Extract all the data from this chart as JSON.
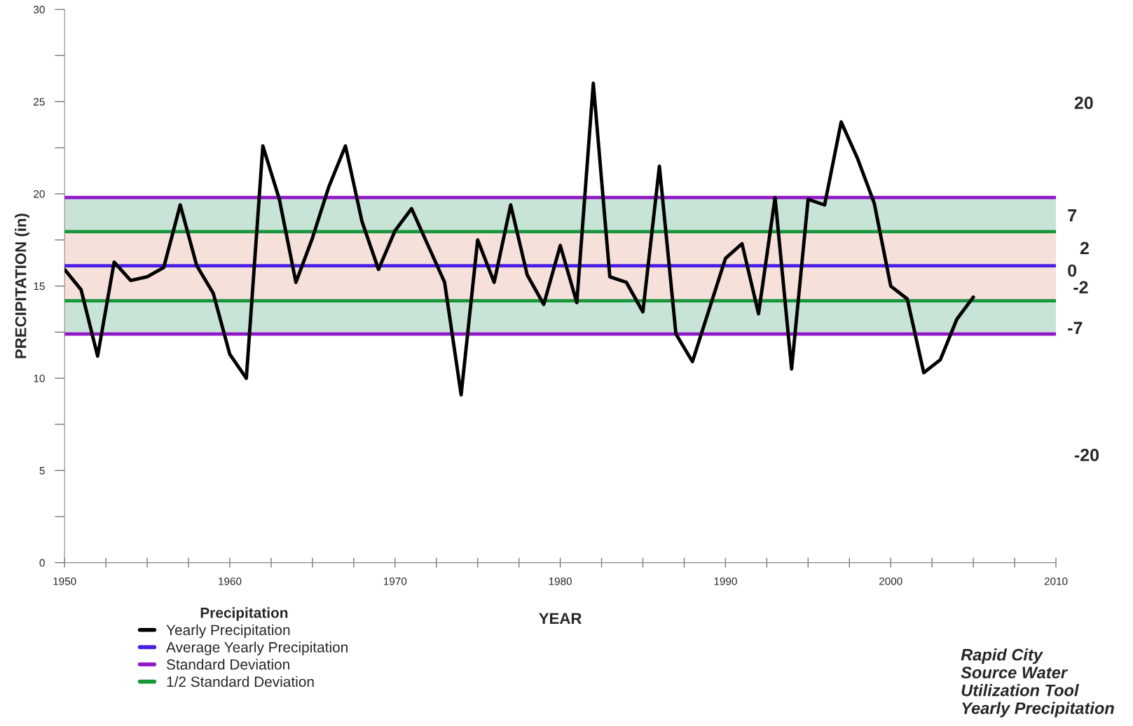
{
  "chart_data": {
    "type": "line",
    "xlabel": "YEAR",
    "ylabel": "PRECIPITATION (in)",
    "legend_title": "Precipitation",
    "legend": "bottom left",
    "x": [
      1950,
      1951,
      1952,
      1953,
      1954,
      1955,
      1956,
      1957,
      1958,
      1959,
      1960,
      1961,
      1962,
      1963,
      1964,
      1965,
      1966,
      1967,
      1968,
      1969,
      1970,
      1971,
      1972,
      1973,
      1974,
      1975,
      1976,
      1977,
      1978,
      1979,
      1980,
      1981,
      1982,
      1983,
      1984,
      1985,
      1986,
      1987,
      1988,
      1989,
      1990,
      1991,
      1992,
      1993,
      1994,
      1995,
      1996,
      1997,
      1998,
      1999,
      2000,
      2001,
      2002,
      2003,
      2004,
      2005
    ],
    "series": [
      {
        "name": "Yearly Precipitation",
        "color": "#000000",
        "values": [
          15.9,
          14.8,
          11.2,
          16.3,
          15.3,
          15.5,
          16.0,
          19.4,
          16.1,
          14.6,
          11.3,
          10.0,
          22.6,
          19.7,
          15.2,
          17.6,
          20.4,
          22.6,
          18.5,
          15.9,
          18.0,
          19.2,
          17.2,
          15.2,
          9.1,
          17.5,
          15.2,
          19.4,
          15.6,
          14.0,
          17.2,
          14.1,
          26.0,
          15.5,
          15.2,
          13.6,
          21.5,
          12.4,
          10.9,
          13.7,
          16.5,
          17.3,
          13.5,
          19.8,
          10.5,
          19.7,
          19.4,
          23.9,
          21.9,
          19.5,
          15.0,
          14.3,
          10.3,
          11.0,
          13.2,
          14.4
        ]
      }
    ],
    "ref_lines": [
      {
        "axis": "y",
        "value": 16.1,
        "label": "Average Yearly Precipitation",
        "color": "#4b1ee6"
      },
      {
        "axis": "y",
        "value": 19.8,
        "label": "Standard Deviation",
        "color": "#9016c8"
      },
      {
        "axis": "y",
        "value": 12.4,
        "label": null,
        "color": "#9016c8"
      },
      {
        "axis": "y",
        "value": 17.95,
        "label": "1/2 Standard Deviation",
        "color": "#18963c"
      },
      {
        "axis": "y",
        "value": 14.2,
        "label": null,
        "color": "#18963c"
      }
    ],
    "bands": [
      {
        "axis": "y",
        "from": 12.4,
        "to": 14.2,
        "color": "#c8e4d6"
      },
      {
        "axis": "y",
        "from": 14.2,
        "to": 17.95,
        "color": "#f6e0da"
      },
      {
        "axis": "y",
        "from": 17.95,
        "to": 19.8,
        "color": "#c8e4d6"
      }
    ],
    "annotations": [
      "20",
      "7",
      "2",
      "0",
      "-2",
      "-7",
      "-20",
      "Rapid City\nSource Water\nUtilization Tool\nYearly Precipitation"
    ],
    "xlim": [
      1950,
      2010
    ],
    "xticks": [
      1950,
      {
        "value": 1952.5,
        "label": null
      },
      {
        "value": 1955,
        "label": null
      },
      {
        "value": 1957.5,
        "label": null
      },
      1960,
      {
        "value": 1962.5,
        "label": null
      },
      {
        "value": 1965,
        "label": null
      },
      {
        "value": 1967.5,
        "label": null
      },
      1970,
      {
        "value": 1972.5,
        "label": null
      },
      {
        "value": 1975,
        "label": null
      },
      {
        "value": 1977.5,
        "label": null
      },
      1980,
      {
        "value": 1982.5,
        "label": null
      },
      {
        "value": 1985,
        "label": null
      },
      {
        "value": 1987.5,
        "label": null
      },
      1990,
      {
        "value": 1992.5,
        "label": null
      },
      {
        "value": 1995,
        "label": null
      },
      {
        "value": 1997.5,
        "label": null
      },
      2000,
      {
        "value": 2002.5,
        "label": null
      },
      {
        "value": 2005,
        "label": null
      },
      {
        "value": 2007.5,
        "label": null
      },
      2010
    ],
    "ylim": [
      0,
      30
    ],
    "yticks": [
      0,
      {
        "value": 2.5,
        "label": null
      },
      5,
      {
        "value": 7.5,
        "label": null
      },
      10,
      {
        "value": 12.5,
        "label": null
      },
      15,
      {
        "value": 17.5,
        "label": null
      },
      20,
      {
        "value": 22.5,
        "label": null
      },
      25,
      {
        "value": 27.5,
        "label": null
      },
      30
    ],
    "grid": false,
    "marker": "none",
    "line_style": "solid"
  }
}
